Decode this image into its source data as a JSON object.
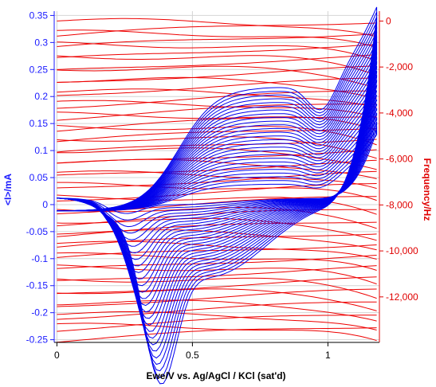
{
  "chart_data": {
    "type": "line",
    "title": "",
    "xlabel": "Ewe/V vs. Ag/AgCl / KCl (sat'd)",
    "ylabel_left": "<I>/mA",
    "ylabel_right": "Frequency/Hz",
    "xlim": [
      -0.01,
      1.19
    ],
    "ylim_left": [
      -0.255,
      0.358
    ],
    "ylim_right": [
      -13980,
      430
    ],
    "x_ticks": [
      0,
      0.5,
      1
    ],
    "x_tick_labels": [
      "0",
      "0.5",
      "1"
    ],
    "y_left_ticks": [
      -0.25,
      -0.2,
      -0.15,
      -0.1,
      -0.05,
      0,
      0.05,
      0.1,
      0.15,
      0.2,
      0.25,
      0.3,
      0.35
    ],
    "y_left_tick_labels": [
      "-0.25",
      "-0.2",
      "-0.15",
      "-0.1",
      "-0.05",
      "0",
      "0.05",
      "0.1",
      "0.15",
      "0.2",
      "0.25",
      "0.3",
      "0.35"
    ],
    "y_right_ticks": [
      0,
      -2000,
      -4000,
      -6000,
      -8000,
      -10000,
      -12000
    ],
    "y_right_tick_labels": [
      "0",
      "-2,000",
      "-4,000",
      "-6,000",
      "-8,000",
      "-10,000",
      "-12,000"
    ],
    "grid": true,
    "colors": {
      "current": "#0000ee",
      "frequency": "#ee0000",
      "left_axis": "#1a1aff",
      "right_axis": "#e00000"
    },
    "series": [
      {
        "axis": "left",
        "kind": "cyclic-voltammogram",
        "cycles": 27,
        "x_range": [
          0,
          1.18
        ],
        "anodic_peak": {
          "x": 0.75,
          "y_first": 0.05,
          "y_last": 0.23
        },
        "cathodic_peak": {
          "x_first": 0.25,
          "y_first": -0.02,
          "x_last": 0.38,
          "y_last": -0.242
        },
        "switching_current": {
          "y_first": 0.135,
          "y_last": 0.35
        }
      },
      {
        "axis": "right",
        "kind": "frequency-trace",
        "cycles": 27,
        "x_range": [
          0,
          1.18
        ],
        "start_frequency": 0,
        "end_frequency": -13300,
        "drop_per_cycle": 510
      }
    ]
  }
}
